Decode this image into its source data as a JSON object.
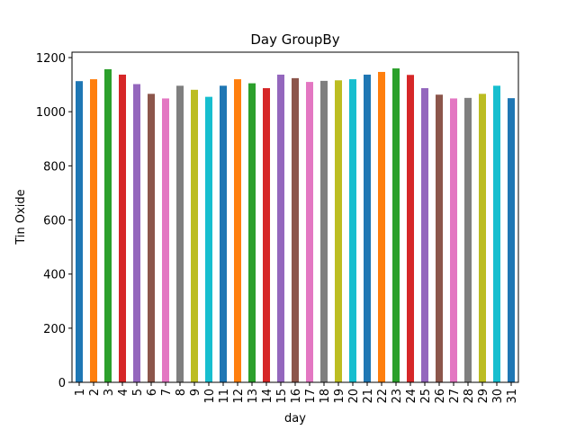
{
  "chart_data": {
    "type": "bar",
    "title": "Day GroupBy",
    "xlabel": "day",
    "ylabel": "Tin Oxide",
    "categories": [
      "1",
      "2",
      "3",
      "4",
      "5",
      "6",
      "7",
      "8",
      "9",
      "10",
      "11",
      "12",
      "13",
      "14",
      "15",
      "16",
      "17",
      "18",
      "19",
      "20",
      "21",
      "22",
      "23",
      "24",
      "25",
      "26",
      "27",
      "28",
      "29",
      "30",
      "31"
    ],
    "values": [
      1113,
      1120,
      1157,
      1137,
      1102,
      1066,
      1049,
      1096,
      1081,
      1055,
      1096,
      1120,
      1105,
      1087,
      1137,
      1124,
      1110,
      1114,
      1116,
      1120,
      1137,
      1147,
      1160,
      1136,
      1087,
      1063,
      1049,
      1051,
      1066,
      1096,
      1050
    ],
    "ylim": [
      0,
      1220
    ],
    "yticks": [
      0,
      200,
      400,
      600,
      800,
      1000,
      1200
    ],
    "grid": false,
    "legend": "none",
    "colors": [
      "#1f77b4",
      "#ff7f0e",
      "#2ca02c",
      "#d62728",
      "#9467bd",
      "#8c564b",
      "#e377c2",
      "#7f7f7f",
      "#bcbd22",
      "#17becf"
    ]
  }
}
